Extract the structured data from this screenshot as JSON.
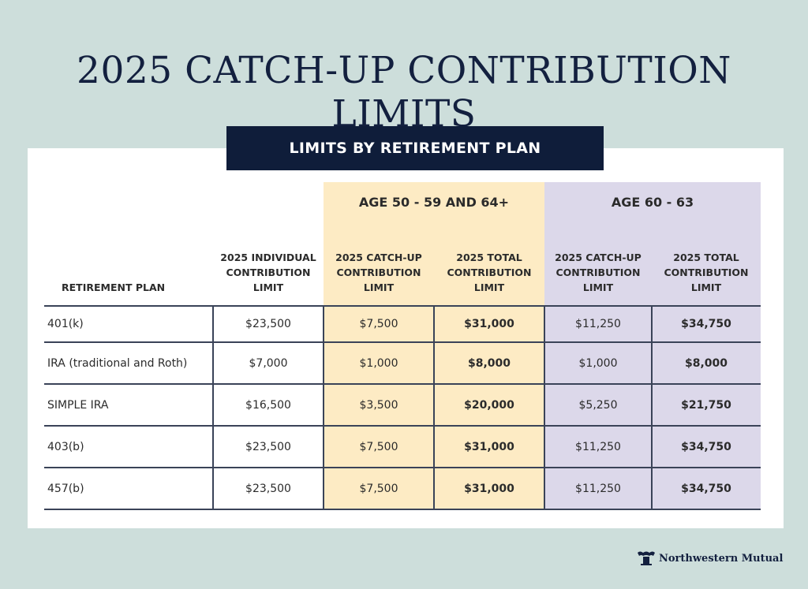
{
  "title": "2025 CATCH-UP CONTRIBUTION LIMITS",
  "banner": "LIMITS BY RETIREMENT PLAN",
  "groups": [
    "AGE 50 - 59 AND 64+",
    "AGE 60 - 63"
  ],
  "headers": [
    "RETIREMENT PLAN",
    "2025 INDIVIDUAL CONTRIBUTION LIMIT",
    "2025 CATCH-UP CONTRIBUTION LIMIT",
    "2025 TOTAL CONTRIBUTION LIMIT",
    "2025 CATCH-UP CONTRIBUTION LIMIT",
    "2025 TOTAL CONTRIBUTION LIMIT"
  ],
  "rows": [
    [
      "401(k)",
      "$23,500",
      "$7,500",
      "$31,000",
      "$11,250",
      "$34,750"
    ],
    [
      "IRA (traditional and Roth)",
      "$7,000",
      "$1,000",
      "$8,000",
      "$1,000",
      "$8,000"
    ],
    [
      "SIMPLE IRA",
      "$16,500",
      "$3,500",
      "$20,000",
      "$5,250",
      "$21,750"
    ],
    [
      "403(b)",
      "$23,500",
      "$7,500",
      "$31,000",
      "$11,250",
      "$34,750"
    ],
    [
      "457(b)",
      "$23,500",
      "$7,500",
      "$31,000",
      "$11,250",
      "$34,750"
    ]
  ],
  "logo": "Northwestern Mutual",
  "colors": {
    "background": "#cddedb",
    "navy": "#0f1d3a",
    "age_50_band": "#fdebc4",
    "age_60_band": "#dcd8ea"
  }
}
